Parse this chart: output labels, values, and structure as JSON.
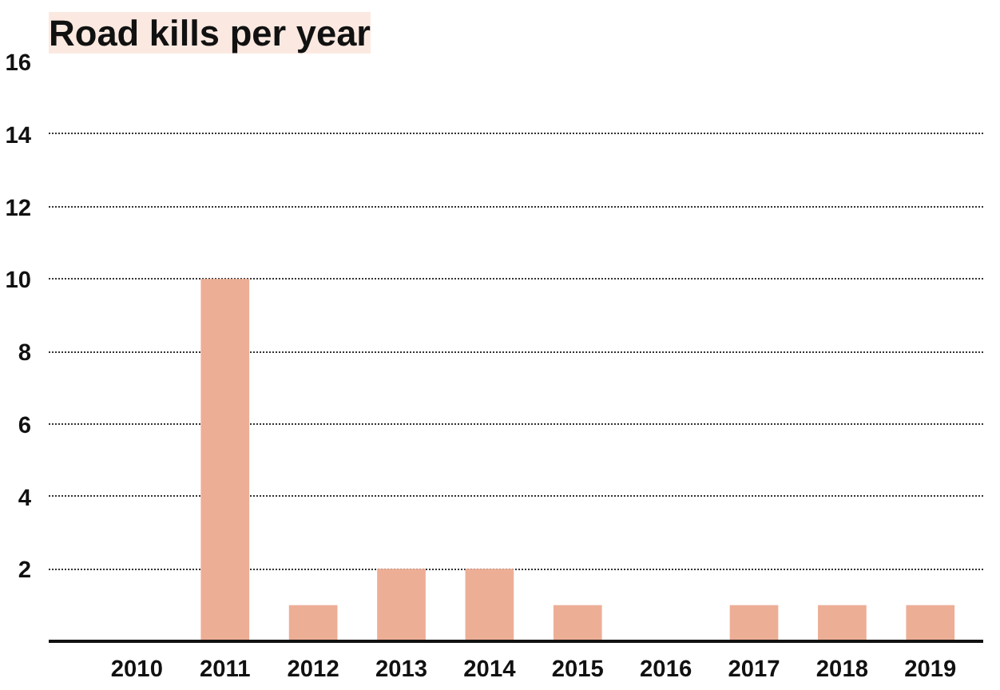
{
  "chart_data": {
    "type": "bar",
    "title": "Road kills per year",
    "categories": [
      "2010",
      "2011",
      "2012",
      "2013",
      "2014",
      "2015",
      "2016",
      "2017",
      "2018",
      "2019"
    ],
    "values": [
      0,
      10,
      1,
      2,
      2,
      1,
      0,
      1,
      1,
      1
    ],
    "color": "#edae96",
    "ylim": [
      0,
      16
    ],
    "yticks": [
      2,
      4,
      6,
      8,
      10,
      12,
      14,
      16
    ],
    "grid": "y"
  }
}
